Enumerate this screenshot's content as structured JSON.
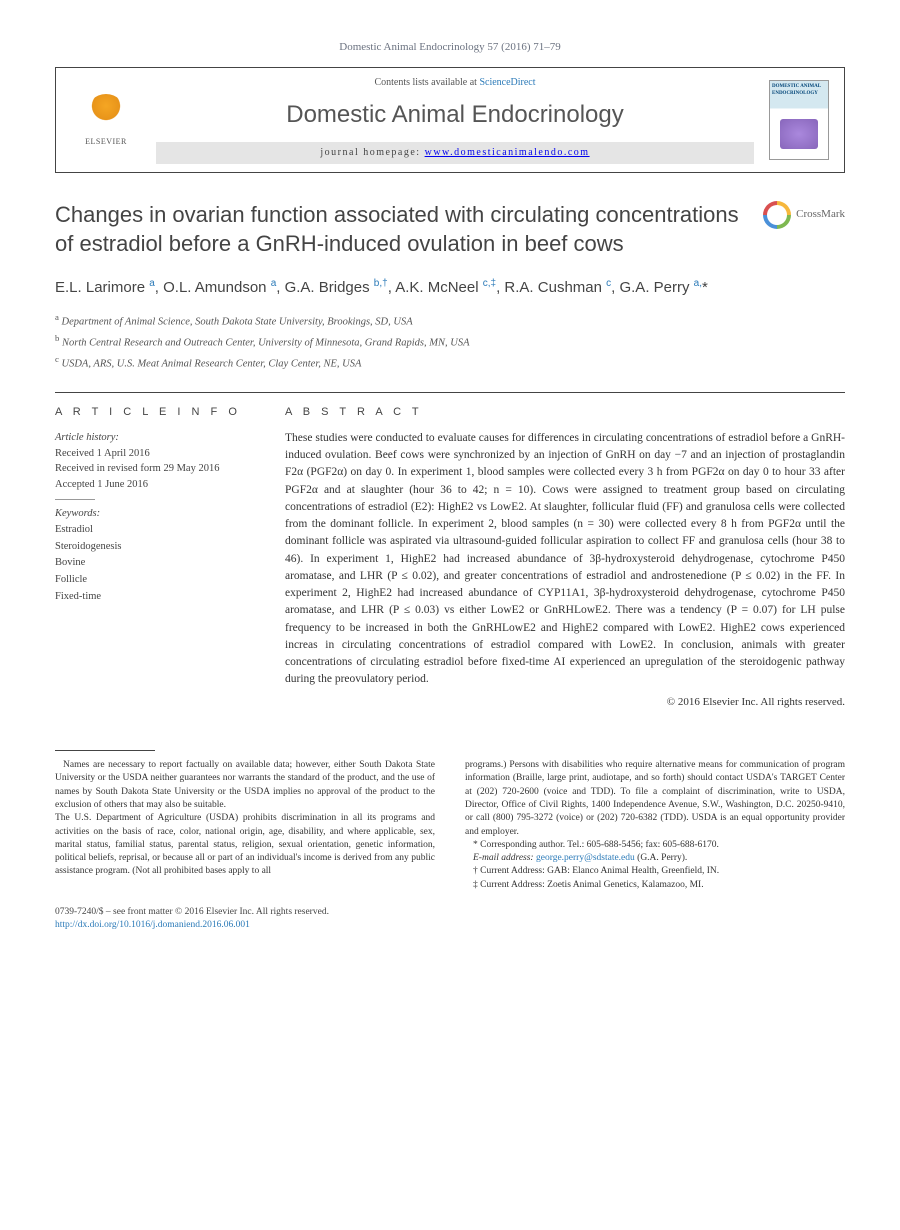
{
  "journal_ref": "Domestic Animal Endocrinology 57 (2016) 71–79",
  "header": {
    "contents_prefix": "Contents lists available at ",
    "contents_link": "ScienceDirect",
    "journal_name": "Domestic Animal Endocrinology",
    "homepage_label": "journal homepage: ",
    "homepage_url": "www.domesticanimalendo.com",
    "publisher": "ELSEVIER",
    "cover_title": "DOMESTIC ANIMAL ENDOCRINOLOGY"
  },
  "crossmark": "CrossMark",
  "title": "Changes in ovarian function associated with circulating concentrations of estradiol before a GnRH-induced ovulation in beef cows",
  "authors_html": "E.L. Larimore <sup>a</sup>, O.L. Amundson <sup>a</sup>, G.A. Bridges <sup>b,†</sup>, A.K. McNeel <sup>c,‡</sup>, R.A. Cushman <sup>c</sup>, G.A. Perry <sup>a,</sup>*",
  "affiliations": [
    {
      "sup": "a",
      "text": "Department of Animal Science, South Dakota State University, Brookings, SD, USA"
    },
    {
      "sup": "b",
      "text": "North Central Research and Outreach Center, University of Minnesota, Grand Rapids, MN, USA"
    },
    {
      "sup": "c",
      "text": "USDA, ARS, U.S. Meat Animal Research Center, Clay Center, NE, USA"
    }
  ],
  "article_info": {
    "head": "A R T I C L E   I N F O",
    "history_hdr": "Article history:",
    "received": "Received 1 April 2016",
    "revised": "Received in revised form 29 May 2016",
    "accepted": "Accepted 1 June 2016",
    "keywords_hdr": "Keywords:",
    "keywords": [
      "Estradiol",
      "Steroidogenesis",
      "Bovine",
      "Follicle",
      "Fixed-time"
    ]
  },
  "abstract": {
    "head": "A B S T R A C T",
    "text": "These studies were conducted to evaluate causes for differences in circulating concentrations of estradiol before a GnRH-induced ovulation. Beef cows were synchronized by an injection of GnRH on day −7 and an injection of prostaglandin F2α (PGF2α) on day 0. In experiment 1, blood samples were collected every 3 h from PGF2α on day 0 to hour 33 after PGF2α and at slaughter (hour 36 to 42; n = 10). Cows were assigned to treatment group based on circulating concentrations of estradiol (E2): HighE2 vs LowE2. At slaughter, follicular fluid (FF) and granulosa cells were collected from the dominant follicle. In experiment 2, blood samples (n = 30) were collected every 8 h from PGF2α until the dominant follicle was aspirated via ultrasound-guided follicular aspiration to collect FF and granulosa cells (hour 38 to 46). In experiment 1, HighE2 had increased abundance of 3β-hydroxysteroid dehydrogenase, cytochrome P450 aromatase, and LHR (P ≤ 0.02), and greater concentrations of estradiol and androstenedione (P ≤ 0.02) in the FF. In experiment 2, HighE2 had increased abundance of CYP11A1, 3β-hydroxysteroid dehydrogenase, cytochrome P450 aromatase, and LHR (P ≤ 0.03) vs either LowE2 or GnRHLowE2. There was a tendency (P = 0.07) for LH pulse frequency to be increased in both the GnRHLowE2 and HighE2 compared with LowE2. HighE2 cows experienced increas in circulating concentrations of estradiol compared with LowE2. In conclusion, animals with greater concentrations of circulating estradiol before fixed-time AI experienced an upregulation of the steroidogenic pathway during the preovulatory period.",
    "copyright": "© 2016 Elsevier Inc. All rights reserved."
  },
  "footnotes": {
    "left": [
      "Names are necessary to report factually on available data; however, either South Dakota State University or the USDA neither guarantees nor warrants the standard of the product, and the use of names by South Dakota State University or the USDA implies no approval of the product to the exclusion of others that may also be suitable.",
      "The U.S. Department of Agriculture (USDA) prohibits discrimination in all its programs and activities on the basis of race, color, national origin, age, disability, and where applicable, sex, marital status, familial status, parental status, religion, sexual orientation, genetic information, political beliefs, reprisal, or because all or part of an individual's income is derived from any public assistance program. (Not all prohibited bases apply to all"
    ],
    "right_intro": "programs.) Persons with disabilities who require alternative means for communication of program information (Braille, large print, audiotape, and so forth) should contact USDA's TARGET Center at (202) 720-2600 (voice and TDD). To file a complaint of discrimination, write to USDA, Director, Office of Civil Rights, 1400 Independence Avenue, S.W., Washington, D.C. 20250-9410, or call (800) 795-3272 (voice) or (202) 720-6382 (TDD). USDA is an equal opportunity provider and employer.",
    "corresponding": "* Corresponding author. Tel.: 605-688-5456; fax: 605-688-6170.",
    "email_label": "E-mail address: ",
    "email": "george.perry@sdstate.edu",
    "email_attr": " (G.A. Perry).",
    "dagger": "† Current Address: GAB: Elanco Animal Health, Greenfield, IN.",
    "ddagger": "‡ Current Address: Zoetis Animal Genetics, Kalamazoo, MI."
  },
  "bottom": {
    "issn": "0739-7240/$ – see front matter © 2016 Elsevier Inc. All rights reserved.",
    "doi": "http://dx.doi.org/10.1016/j.domaniend.2016.06.001"
  },
  "colors": {
    "link": "#2b7ab8",
    "text": "#333333",
    "muted": "#555555"
  }
}
